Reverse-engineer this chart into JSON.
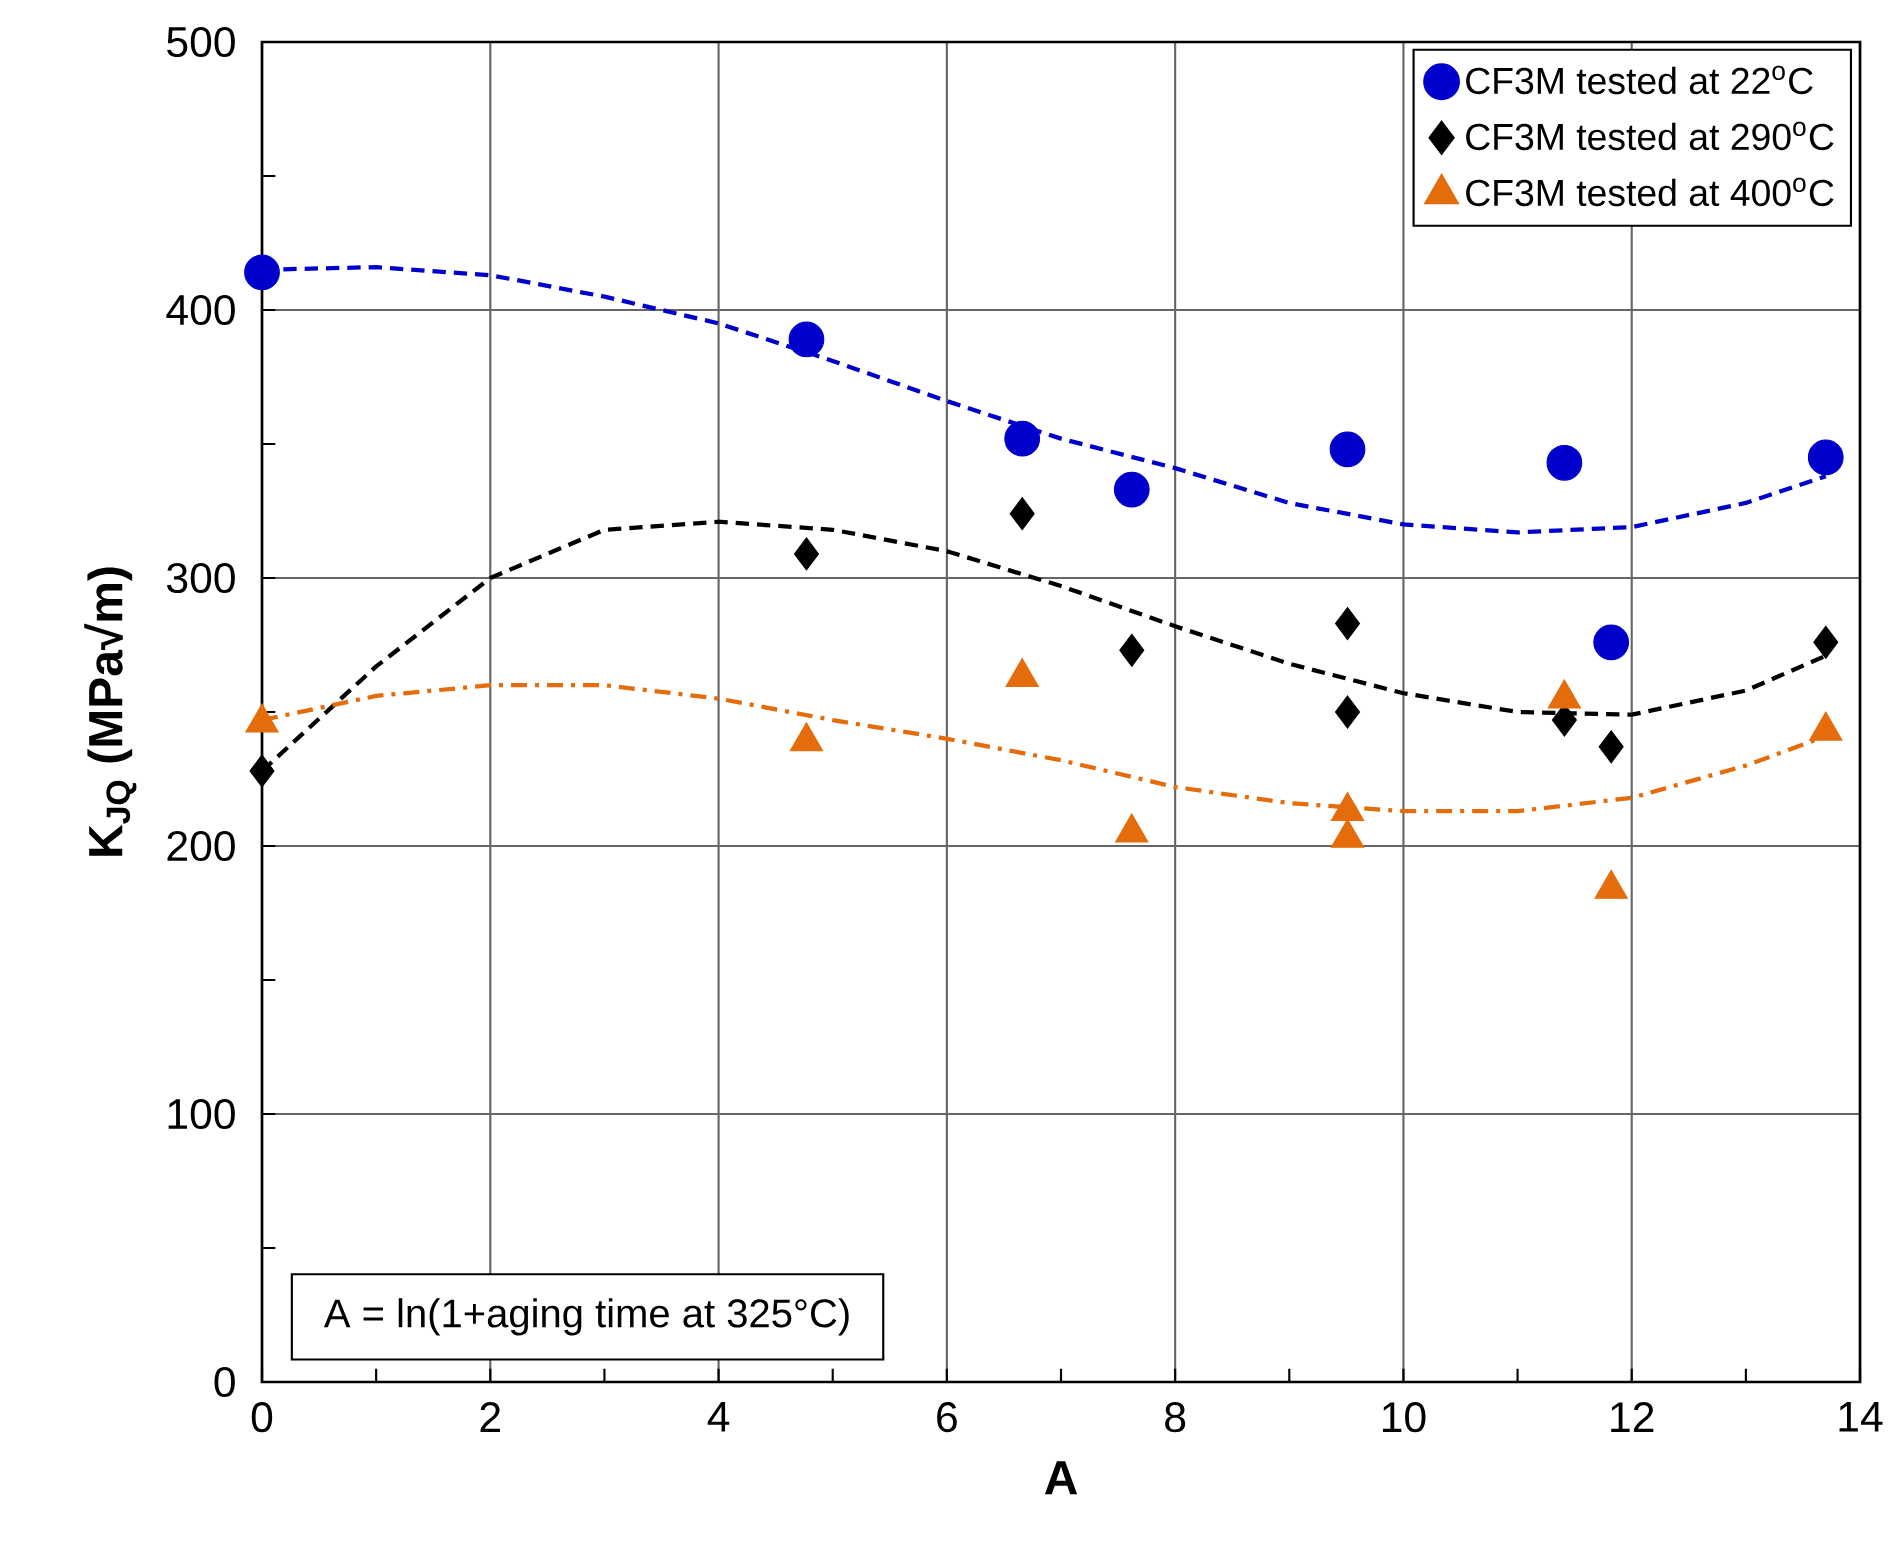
{
  "chart_data": {
    "type": "scatter",
    "xlabel": "A",
    "ylabel": "K$_{JQ}$ (MPa√m)",
    "xlim": [
      0,
      14
    ],
    "ylim": [
      0,
      500
    ],
    "xticks": [
      0,
      2,
      4,
      6,
      8,
      10,
      12,
      14
    ],
    "yticks": [
      0,
      100,
      200,
      300,
      400,
      500
    ],
    "grid": true,
    "legend": "top right",
    "annotations": [
      "A = ln(1+aging time at 325°C)"
    ],
    "series": [
      {
        "name": "CF3M tested at 22$^{o}$C",
        "marker": "circle",
        "color": "#0000cc",
        "x": [
          0,
          4.77,
          6.66,
          7.62,
          9.51,
          11.41,
          11.82,
          13.7
        ],
        "values": [
          414,
          389,
          352,
          333,
          348,
          343,
          276,
          345
        ]
      },
      {
        "name": "CF3M tested at 290$^{o}$C",
        "marker": "diamond",
        "color": "#000000",
        "x": [
          0,
          4.77,
          6.66,
          7.62,
          9.51,
          9.51,
          11.41,
          11.82,
          13.7
        ],
        "values": [
          228,
          309,
          324,
          273,
          283,
          250,
          247,
          237,
          276
        ]
      },
      {
        "name": "CF3M tested at 400$^{o}$C",
        "marker": "triangle",
        "color": "#e46c0a",
        "x": [
          0,
          4.77,
          6.66,
          7.62,
          9.51,
          9.51,
          11.41,
          11.82,
          13.7
        ],
        "values": [
          246,
          239,
          263,
          205,
          213,
          203,
          255,
          184,
          243
        ]
      },
      {
        "type": "line",
        "marker": "none",
        "line_style": "dashed",
        "color": "#0000cc",
        "x": [
          0,
          1,
          2,
          3,
          4,
          5,
          6,
          7,
          8,
          9,
          10,
          11,
          12,
          13,
          13.7
        ],
        "values": [
          415,
          416,
          413,
          405,
          395,
          381,
          366,
          352,
          341,
          328,
          320,
          317,
          319,
          328,
          338
        ]
      },
      {
        "type": "line",
        "marker": "none",
        "line_style": "dashed",
        "color": "#000000",
        "x": [
          0,
          1,
          2,
          3,
          4,
          5,
          6,
          7,
          8,
          9,
          10,
          11,
          12,
          13,
          13.7
        ],
        "values": [
          228,
          267,
          300,
          318,
          321,
          318,
          310,
          297,
          282,
          268,
          257,
          250,
          249,
          258,
          271
        ]
      },
      {
        "type": "line",
        "marker": "none",
        "line_style": "dashdot",
        "color": "#e46c0a",
        "x": [
          0,
          1,
          2,
          3,
          4,
          5,
          6,
          7,
          8,
          9,
          10,
          11,
          12,
          13,
          13.7
        ],
        "values": [
          247,
          256,
          260,
          260,
          255,
          247,
          240,
          232,
          222,
          216,
          213,
          213,
          218,
          230,
          241
        ]
      }
    ]
  }
}
